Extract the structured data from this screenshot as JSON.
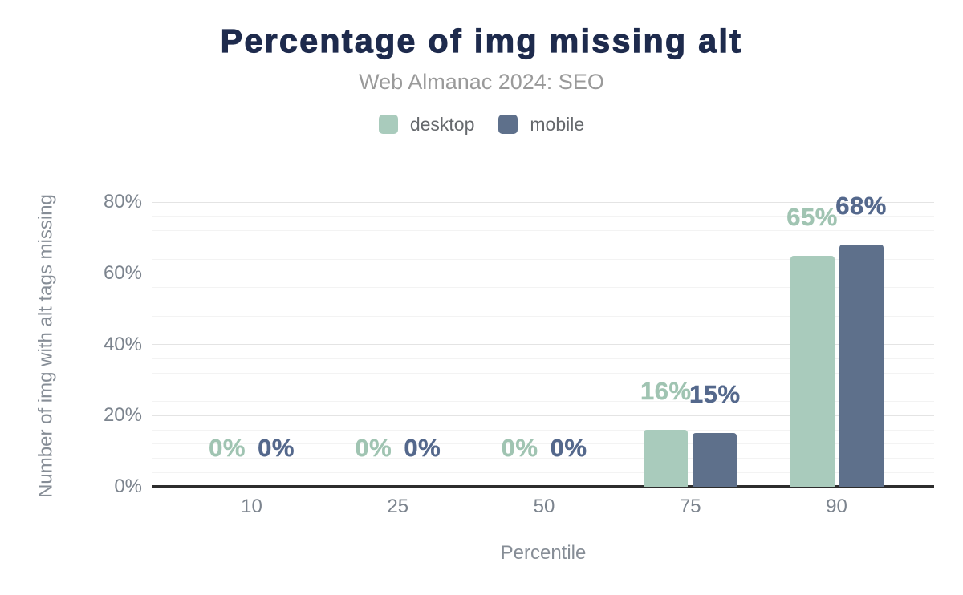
{
  "title": "Percentage of img missing alt",
  "subtitle": "Web Almanac 2024: SEO",
  "legend": {
    "items": [
      {
        "label": "desktop",
        "color": "#a9cbbc"
      },
      {
        "label": "mobile",
        "color": "#5e708b"
      }
    ]
  },
  "chart_data": {
    "type": "bar",
    "categories": [
      "10",
      "25",
      "50",
      "75",
      "90"
    ],
    "series": [
      {
        "name": "desktop",
        "color": "#a9cbbc",
        "label_color": "#a0c4b2",
        "values": [
          0,
          0,
          0,
          16,
          65
        ],
        "labels": [
          "0%",
          "0%",
          "0%",
          "16%",
          "65%"
        ]
      },
      {
        "name": "mobile",
        "color": "#5e708b",
        "label_color": "#54688c",
        "values": [
          0,
          0,
          0,
          15,
          68
        ],
        "labels": [
          "0%",
          "0%",
          "0%",
          "15%",
          "68%"
        ]
      }
    ],
    "xlabel": "Percentile",
    "ylabel": "Number of img with alt tags missing",
    "ylim": [
      0,
      80
    ],
    "ytick_labels": [
      "0%",
      "20%",
      "40%",
      "60%",
      "80%"
    ],
    "ytick_values": [
      0,
      20,
      40,
      60,
      80
    ],
    "minor_tick_step": 4,
    "grid": "horizontal",
    "legend_position": "top"
  },
  "colors": {
    "title": "#1e2b4d",
    "subtitle": "#9a9a9a",
    "legend_text": "#66696d",
    "tick_text": "#7c848e",
    "axis_title_text": "#868d96",
    "baseline": "#2d2d2d",
    "major_grid": "#e4e4e4",
    "minor_grid": "#f3f3f3"
  }
}
